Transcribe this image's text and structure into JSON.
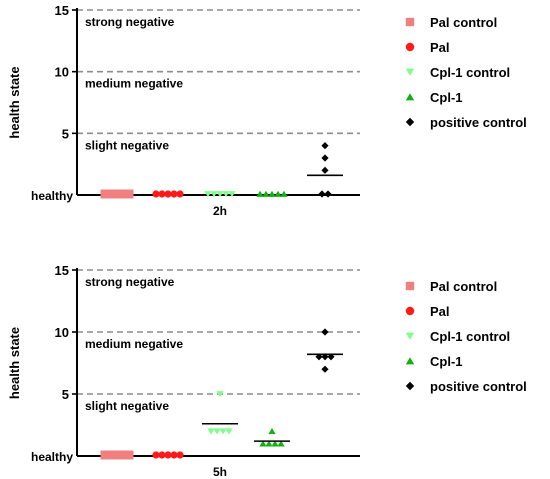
{
  "chart_data": [
    {
      "type": "scatter",
      "title": "",
      "xlabel": "2h",
      "ylabel": "health state",
      "ylim": [
        0,
        15
      ],
      "y_ticks": [
        "15",
        "10",
        "5"
      ],
      "baseline_label": "healthy",
      "grid": "dashed reference lines at 5, 10, 15",
      "reference_lines": [
        {
          "y": 15,
          "label": "strong negative"
        },
        {
          "y": 10,
          "label": "medium negative"
        },
        {
          "y": 5,
          "label": "slight negative"
        }
      ],
      "legend_position": "right",
      "series": [
        {
          "name": "Pal control",
          "marker": "square",
          "color": "#f08080",
          "values": [
            0,
            0,
            0,
            0,
            0
          ],
          "mean": 0
        },
        {
          "name": "Pal",
          "marker": "circle",
          "color": "#ff1a1a",
          "values": [
            0,
            0,
            0,
            0,
            0
          ],
          "mean": 0
        },
        {
          "name": "Cpl-1 control",
          "marker": "triangle-down",
          "color": "#7dff8a",
          "values": [
            0,
            0,
            0,
            0,
            0
          ],
          "mean": 0
        },
        {
          "name": "Cpl-1",
          "marker": "triangle-up",
          "color": "#10b010",
          "values": [
            0,
            0,
            0,
            0,
            0
          ],
          "mean": 0
        },
        {
          "name": "positive control",
          "marker": "diamond",
          "color": "#000000",
          "values": [
            4,
            3,
            2,
            0,
            0
          ],
          "mean": 1.6
        }
      ]
    },
    {
      "type": "scatter",
      "title": "",
      "xlabel": "5h",
      "ylabel": "health state",
      "ylim": [
        0,
        15
      ],
      "y_ticks": [
        "15",
        "10",
        "5"
      ],
      "baseline_label": "healthy",
      "grid": "dashed reference lines at 5, 10, 15",
      "reference_lines": [
        {
          "y": 15,
          "label": "strong negative"
        },
        {
          "y": 10,
          "label": "medium negative"
        },
        {
          "y": 5,
          "label": "slight negative"
        }
      ],
      "legend_position": "right",
      "series": [
        {
          "name": "Pal control",
          "marker": "square",
          "color": "#f08080",
          "values": [
            0,
            0,
            0,
            0,
            0
          ],
          "mean": 0
        },
        {
          "name": "Pal",
          "marker": "circle",
          "color": "#ff1a1a",
          "values": [
            0,
            0,
            0,
            0,
            0
          ],
          "mean": 0
        },
        {
          "name": "Cpl-1 control",
          "marker": "triangle-down",
          "color": "#7dff8a",
          "values": [
            5,
            2,
            2,
            2,
            2
          ],
          "mean": 2.6
        },
        {
          "name": "Cpl-1",
          "marker": "triangle-up",
          "color": "#10b010",
          "values": [
            2,
            1,
            1,
            1,
            1
          ],
          "mean": 1.2
        },
        {
          "name": "positive control",
          "marker": "diamond",
          "color": "#000000",
          "values": [
            10,
            8,
            8,
            8,
            7
          ],
          "mean": 8.2
        }
      ]
    }
  ]
}
